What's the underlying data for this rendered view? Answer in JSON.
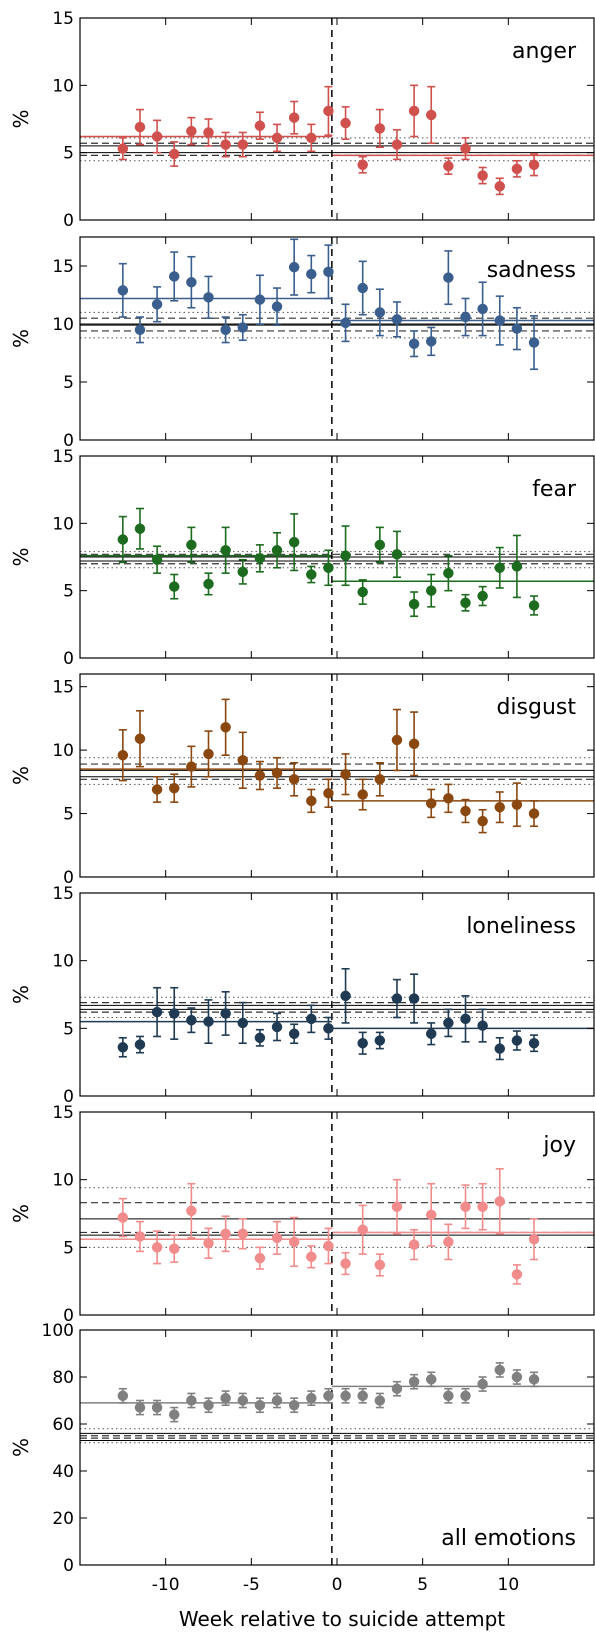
{
  "chart_data": [
    {
      "type": "scatter",
      "label": "anger",
      "color": "#d0504e",
      "ylim": [
        0,
        15
      ],
      "yticks": [
        0,
        5,
        10,
        15
      ],
      "ylabel": "%",
      "x": [
        -12.5,
        -11.5,
        -10.5,
        -9.5,
        -8.5,
        -7.5,
        -6.5,
        -5.5,
        -4.5,
        -3.5,
        -2.5,
        -1.5,
        -0.5,
        0.5,
        1.5,
        2.5,
        3.5,
        4.5,
        5.5,
        6.5,
        7.5,
        8.5,
        9.5,
        10.5,
        11.5
      ],
      "y": [
        5.3,
        6.9,
        6.2,
        4.9,
        6.6,
        6.5,
        5.6,
        5.6,
        7.0,
        6.1,
        7.6,
        6.1,
        8.1,
        7.2,
        4.1,
        6.8,
        5.6,
        8.1,
        7.8,
        4.0,
        5.3,
        3.3,
        2.5,
        3.8,
        4.1
      ],
      "err": [
        0.8,
        1.3,
        1.2,
        0.9,
        1.0,
        1.0,
        0.9,
        0.9,
        1.0,
        1.0,
        1.2,
        1.0,
        1.8,
        1.2,
        0.6,
        1.4,
        1.1,
        1.9,
        2.1,
        0.6,
        0.8,
        0.6,
        0.6,
        0.6,
        0.8
      ],
      "fit_before": 6.2,
      "fit_after": 4.8,
      "ref_solid": [
        5.0,
        5.5
      ],
      "ref_dashed": [
        4.8,
        5.7
      ],
      "ref_dotted": [
        4.4,
        6.1
      ]
    },
    {
      "type": "scatter",
      "label": "sadness",
      "color": "#3a5f8e",
      "ylim": [
        0,
        17.5
      ],
      "yticks": [
        0,
        5,
        10,
        15
      ],
      "ylabel": "%",
      "x": [
        -12.5,
        -11.5,
        -10.5,
        -9.5,
        -8.5,
        -7.5,
        -6.5,
        -5.5,
        -4.5,
        -3.5,
        -2.5,
        -1.5,
        -0.5,
        0.5,
        1.5,
        2.5,
        3.5,
        4.5,
        5.5,
        6.5,
        7.5,
        8.5,
        9.5,
        10.5,
        11.5
      ],
      "y": [
        12.9,
        9.5,
        11.7,
        14.1,
        13.6,
        12.3,
        9.5,
        9.7,
        12.1,
        11.5,
        14.9,
        14.3,
        14.5,
        10.1,
        13.1,
        11.0,
        10.4,
        8.3,
        8.5,
        14.0,
        10.6,
        11.3,
        10.3,
        9.6,
        8.4
      ],
      "err": [
        2.3,
        1.1,
        1.5,
        2.1,
        2.2,
        1.8,
        1.1,
        1.1,
        2.1,
        1.6,
        2.4,
        1.6,
        2.3,
        1.6,
        2.3,
        2.0,
        1.5,
        1.1,
        1.2,
        2.3,
        1.6,
        2.3,
        2.1,
        1.8,
        2.3
      ],
      "fit_before": 12.2,
      "fit_after": 10.3,
      "ref_solid": [
        9.9,
        10.0
      ],
      "ref_dashed": [
        9.4,
        10.5
      ],
      "ref_dotted": [
        8.8,
        11.0
      ]
    },
    {
      "type": "scatter",
      "label": "fear",
      "color": "#1d6b1f",
      "ylim": [
        0,
        15
      ],
      "yticks": [
        0,
        5,
        10,
        15
      ],
      "ylabel": "%",
      "x": [
        -12.5,
        -11.5,
        -10.5,
        -9.5,
        -8.5,
        -7.5,
        -6.5,
        -5.5,
        -4.5,
        -3.5,
        -2.5,
        -1.5,
        -0.5,
        0.5,
        1.5,
        2.5,
        3.5,
        4.5,
        5.5,
        6.5,
        7.5,
        8.5,
        9.5,
        10.5,
        11.5
      ],
      "y": [
        8.8,
        9.6,
        7.3,
        5.3,
        8.4,
        5.5,
        8.0,
        6.4,
        7.4,
        8.0,
        8.6,
        6.2,
        6.7,
        7.6,
        4.9,
        8.4,
        7.7,
        4.0,
        5.0,
        6.3,
        4.1,
        4.6,
        6.7,
        6.8,
        3.9
      ],
      "err": [
        1.7,
        1.5,
        1.0,
        0.9,
        1.3,
        0.8,
        1.7,
        0.9,
        1.0,
        1.3,
        2.1,
        0.6,
        1.3,
        2.2,
        0.9,
        1.3,
        1.7,
        0.9,
        1.2,
        1.3,
        0.6,
        0.7,
        1.5,
        2.3,
        0.7
      ],
      "fit_before": 7.6,
      "fit_after": 5.7,
      "ref_solid": [
        7.2,
        7.5
      ],
      "ref_dashed": [
        7.0,
        7.7
      ],
      "ref_dotted": [
        6.7,
        7.9
      ]
    },
    {
      "type": "scatter",
      "label": "disgust",
      "color": "#8a4710",
      "ylim": [
        0,
        16
      ],
      "yticks": [
        0,
        5,
        10,
        15
      ],
      "ylabel": "%",
      "x": [
        -12.5,
        -11.5,
        -10.5,
        -9.5,
        -8.5,
        -7.5,
        -6.5,
        -5.5,
        -4.5,
        -3.5,
        -2.5,
        -1.5,
        -0.5,
        0.5,
        1.5,
        2.5,
        3.5,
        4.5,
        5.5,
        6.5,
        7.5,
        8.5,
        9.5,
        10.5,
        11.5
      ],
      "y": [
        9.6,
        10.9,
        6.9,
        7.0,
        8.7,
        9.7,
        11.8,
        9.2,
        8.0,
        8.2,
        7.7,
        6.0,
        6.6,
        8.1,
        6.5,
        7.7,
        10.8,
        10.5,
        5.8,
        6.2,
        5.2,
        4.4,
        5.5,
        5.7,
        5.0
      ],
      "err": [
        2.0,
        2.2,
        1.0,
        1.1,
        1.6,
        1.8,
        2.2,
        2.2,
        1.1,
        1.2,
        1.3,
        0.9,
        1.1,
        1.6,
        1.2,
        1.3,
        2.4,
        2.5,
        1.1,
        1.1,
        0.9,
        0.9,
        1.2,
        1.7,
        1.0
      ],
      "fit_before": 8.5,
      "fit_after": 6.0,
      "ref_solid": [
        7.9,
        8.4
      ],
      "ref_dashed": [
        7.7,
        8.9
      ],
      "ref_dotted": [
        7.3,
        9.4
      ]
    },
    {
      "type": "scatter",
      "label": "loneliness",
      "color": "#1f3a52",
      "ylim": [
        0,
        15
      ],
      "yticks": [
        0,
        5,
        10,
        15
      ],
      "ylabel": "%",
      "x": [
        -12.5,
        -11.5,
        -10.5,
        -9.5,
        -8.5,
        -7.5,
        -6.5,
        -5.5,
        -4.5,
        -3.5,
        -2.5,
        -1.5,
        -0.5,
        0.5,
        1.5,
        2.5,
        3.5,
        4.5,
        5.5,
        6.5,
        7.5,
        8.5,
        9.5,
        10.5,
        11.5
      ],
      "y": [
        3.6,
        3.8,
        6.2,
        6.1,
        5.6,
        5.5,
        6.1,
        5.4,
        4.3,
        5.1,
        4.6,
        5.7,
        5.0,
        7.4,
        3.9,
        4.1,
        7.2,
        7.2,
        4.6,
        5.4,
        5.7,
        5.2,
        3.5,
        4.1,
        3.9
      ],
      "err": [
        0.7,
        0.6,
        1.8,
        1.9,
        0.9,
        1.6,
        1.6,
        1.5,
        0.6,
        1.0,
        0.7,
        1.0,
        0.8,
        2.0,
        0.8,
        0.6,
        1.4,
        1.8,
        0.8,
        1.0,
        1.7,
        1.2,
        0.8,
        0.7,
        0.6
      ],
      "fit_before": 5.5,
      "fit_after": 5.0,
      "ref_solid": [
        6.4,
        6.7
      ],
      "ref_dashed": [
        6.2,
        6.9
      ],
      "ref_dotted": [
        5.8,
        7.3
      ]
    },
    {
      "type": "scatter",
      "label": "joy",
      "color": "#f28b8b",
      "ylim": [
        0,
        15
      ],
      "yticks": [
        0,
        5,
        10,
        15
      ],
      "ylabel": "%",
      "x": [
        -12.5,
        -11.5,
        -10.5,
        -9.5,
        -8.5,
        -7.5,
        -6.5,
        -5.5,
        -4.5,
        -3.5,
        -2.5,
        -1.5,
        -0.5,
        0.5,
        1.5,
        2.5,
        3.5,
        4.5,
        5.5,
        6.5,
        7.5,
        8.5,
        9.5,
        10.5,
        11.5
      ],
      "y": [
        7.2,
        5.8,
        5.0,
        4.9,
        7.7,
        5.3,
        6.0,
        6.0,
        4.2,
        5.7,
        5.4,
        4.3,
        5.1,
        3.8,
        6.3,
        3.7,
        8.0,
        5.2,
        7.4,
        5.4,
        8.0,
        8.0,
        8.4,
        3.0,
        5.6
      ],
      "err": [
        1.4,
        1.1,
        1.2,
        1.0,
        2.0,
        1.1,
        1.3,
        1.1,
        0.8,
        1.2,
        1.8,
        0.8,
        1.3,
        0.8,
        1.8,
        0.8,
        2.0,
        1.1,
        2.3,
        1.3,
        1.6,
        1.7,
        2.4,
        0.7,
        1.5
      ],
      "fit_before": 5.6,
      "fit_after": 6.1,
      "ref_solid": [
        5.9,
        7.1
      ],
      "ref_dashed": [
        6.1,
        8.3
      ],
      "ref_dotted": [
        5.0,
        9.4
      ]
    },
    {
      "type": "scatter",
      "label": "all emotions",
      "color": "#808080",
      "ylim": [
        0,
        100
      ],
      "yticks": [
        0,
        20,
        40,
        60,
        80,
        100
      ],
      "ylabel": "%",
      "x": [
        -12.5,
        -11.5,
        -10.5,
        -9.5,
        -8.5,
        -7.5,
        -6.5,
        -5.5,
        -4.5,
        -3.5,
        -2.5,
        -1.5,
        -0.5,
        0.5,
        1.5,
        2.5,
        3.5,
        4.5,
        5.5,
        6.5,
        7.5,
        8.5,
        9.5,
        10.5,
        11.5
      ],
      "y": [
        72,
        67,
        67,
        64,
        70,
        68,
        71,
        70,
        68,
        70,
        68,
        71,
        72,
        72,
        72,
        70,
        75,
        78,
        79,
        72,
        72,
        77,
        83,
        80,
        79
      ],
      "err": [
        3,
        3,
        3,
        3,
        3,
        3,
        3,
        3,
        3,
        3,
        3,
        3,
        3,
        3,
        3,
        3,
        3,
        3,
        3,
        3,
        3,
        3,
        3,
        3,
        3
      ],
      "fit_before": 69,
      "fit_after": 76,
      "ref_solid": [
        53,
        56
      ],
      "ref_dashed": [
        54,
        55
      ],
      "ref_dotted": [
        52,
        58
      ]
    }
  ],
  "shared": {
    "xlim": [
      -15,
      15
    ],
    "xticks": [
      -10,
      -5,
      0,
      5,
      10
    ],
    "xtick_labels": [
      "-10",
      "-5",
      "0",
      "5",
      "10"
    ],
    "vline_x": -0.3,
    "xlabel": "Week relative to suicide attempt"
  }
}
